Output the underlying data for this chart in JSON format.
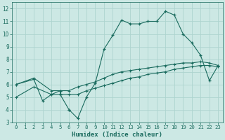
{
  "xlabel": "Humidex (Indice chaleur)",
  "bg_color": "#cce8e4",
  "grid_color": "#add4cf",
  "line_color": "#1a6b5e",
  "xlim": [
    -0.5,
    23.5
  ],
  "ylim": [
    3,
    12.5
  ],
  "xticks": [
    0,
    1,
    2,
    3,
    4,
    5,
    6,
    7,
    8,
    9,
    10,
    11,
    12,
    13,
    14,
    15,
    16,
    17,
    18,
    19,
    20,
    21,
    22,
    23
  ],
  "yticks": [
    3,
    4,
    5,
    6,
    7,
    8,
    9,
    10,
    11,
    12
  ],
  "series1_x": [
    0,
    2,
    3,
    4,
    5,
    5,
    6,
    6,
    7,
    8,
    9,
    10,
    11,
    12,
    13,
    14,
    15,
    16,
    17,
    18,
    19,
    20,
    21,
    22,
    23
  ],
  "series1_y": [
    6.0,
    6.4,
    4.7,
    5.2,
    5.5,
    5.2,
    4.0,
    4.0,
    3.3,
    5.0,
    6.1,
    8.8,
    9.9,
    11.1,
    10.8,
    10.8,
    11.0,
    11.0,
    11.8,
    11.5,
    10.0,
    9.3,
    8.3,
    6.3,
    7.5
  ],
  "series2_x": [
    0,
    2,
    4,
    5,
    6,
    7,
    8,
    9,
    10,
    11,
    12,
    13,
    14,
    15,
    16,
    17,
    18,
    19,
    20,
    21,
    22,
    23
  ],
  "series2_y": [
    6.0,
    6.5,
    5.5,
    5.5,
    5.5,
    5.8,
    6.0,
    6.2,
    6.5,
    6.8,
    7.0,
    7.1,
    7.2,
    7.3,
    7.4,
    7.5,
    7.6,
    7.7,
    7.7,
    7.8,
    7.7,
    7.5
  ],
  "series3_x": [
    0,
    2,
    4,
    5,
    6,
    7,
    8,
    9,
    10,
    11,
    12,
    13,
    14,
    15,
    16,
    17,
    18,
    19,
    20,
    21,
    22,
    23
  ],
  "series3_y": [
    5.0,
    5.8,
    5.2,
    5.2,
    5.2,
    5.2,
    5.5,
    5.7,
    5.9,
    6.1,
    6.3,
    6.5,
    6.6,
    6.8,
    6.9,
    7.0,
    7.2,
    7.3,
    7.4,
    7.5,
    7.5,
    7.4
  ]
}
